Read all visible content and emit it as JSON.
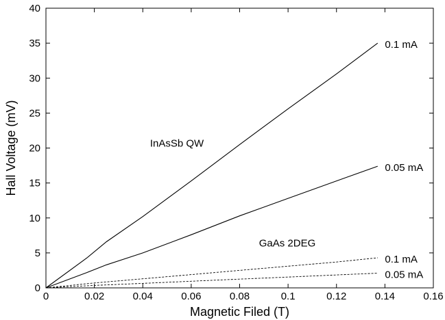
{
  "chart_data": {
    "type": "line",
    "title": "",
    "xlabel": "Magnetic Filed (T)",
    "ylabel": "Hall Voltage (mV)",
    "xlim": [
      0,
      0.16
    ],
    "ylim": [
      0,
      40
    ],
    "xticks": [
      0,
      0.02,
      0.04,
      0.06,
      0.08,
      0.1,
      0.12,
      0.14,
      0.16
    ],
    "xtick_labels": [
      "0",
      "0.02",
      "0.04",
      "0.06",
      "0.08",
      "0.1",
      "0.12",
      "0.14",
      "0.16"
    ],
    "yticks": [
      0,
      5,
      10,
      15,
      20,
      25,
      30,
      35,
      40
    ],
    "ytick_labels": [
      "0",
      "5",
      "10",
      "15",
      "20",
      "25",
      "30",
      "35",
      "40"
    ],
    "grid": false,
    "legend": "none",
    "series": [
      {
        "name": "0.1 mA",
        "group": "InAsSb QW",
        "style": "solid",
        "x": [
          0,
          0.017,
          0.025,
          0.04,
          0.06,
          0.08,
          0.1,
          0.12,
          0.137
        ],
        "y": [
          0,
          4.3,
          6.6,
          10.2,
          15.3,
          20.5,
          25.6,
          30.6,
          35.0
        ]
      },
      {
        "name": "0.05 mA",
        "group": "InAsSb QW",
        "style": "solid",
        "x": [
          0,
          0.017,
          0.025,
          0.04,
          0.06,
          0.08,
          0.1,
          0.12,
          0.137
        ],
        "y": [
          0,
          2.2,
          3.3,
          5.0,
          7.6,
          10.3,
          12.8,
          15.3,
          17.4
        ]
      },
      {
        "name": "0.1 mA",
        "group": "GaAs 2DEG",
        "style": "dashed",
        "x": [
          0,
          0.02,
          0.04,
          0.06,
          0.08,
          0.1,
          0.12,
          0.137
        ],
        "y": [
          0,
          0.7,
          1.3,
          1.9,
          2.5,
          3.1,
          3.7,
          4.3
        ]
      },
      {
        "name": "0.05 mA",
        "group": "GaAs 2DEG",
        "style": "dashed",
        "x": [
          0,
          0.02,
          0.04,
          0.06,
          0.08,
          0.1,
          0.12,
          0.137
        ],
        "y": [
          0,
          0.35,
          0.65,
          0.95,
          1.25,
          1.55,
          1.85,
          2.1
        ]
      }
    ],
    "annotations": [
      {
        "text": "InAsSb QW",
        "x": 0.043,
        "y": 20.7
      },
      {
        "text": "GaAs 2DEG",
        "x": 0.088,
        "y": 6.4
      },
      {
        "text": "0.1 mA",
        "x": 0.14,
        "y": 34.8
      },
      {
        "text": "0.05 mA",
        "x": 0.14,
        "y": 17.2
      },
      {
        "text": "0.1 mA",
        "x": 0.14,
        "y": 4.1
      },
      {
        "text": "0.05 mA",
        "x": 0.14,
        "y": 1.9
      }
    ],
    "colors": {
      "line": "#000000",
      "frame": "#000000"
    }
  }
}
